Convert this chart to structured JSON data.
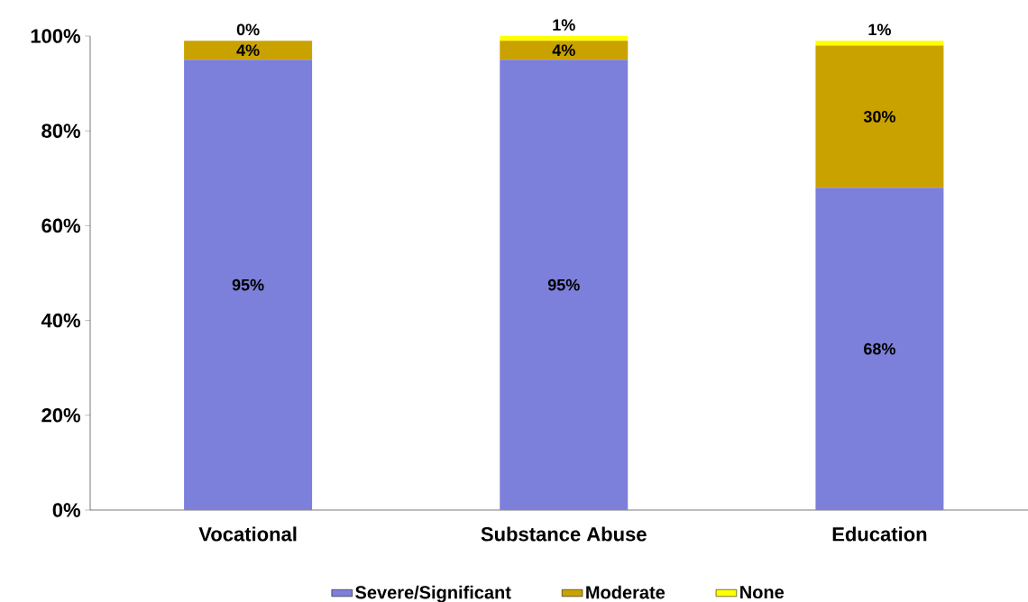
{
  "chart_data": {
    "type": "bar",
    "stacked": true,
    "categories": [
      "Vocational",
      "Substance Abuse",
      "Education"
    ],
    "series": [
      {
        "name": "Severe/Significant",
        "color": "#7c80da",
        "values": [
          95,
          95,
          68
        ],
        "value_labels": [
          "95%",
          "95%",
          "68%"
        ]
      },
      {
        "name": "Moderate",
        "color": "#c9a200",
        "values": [
          4,
          4,
          30
        ],
        "value_labels": [
          "4%",
          "4%",
          "30%"
        ]
      },
      {
        "name": "None",
        "color": "#ffff00",
        "values": [
          0,
          1,
          1
        ],
        "value_labels": [
          "0%",
          "1%",
          "1%"
        ]
      }
    ],
    "ylim": [
      0,
      100
    ],
    "yticks": [
      {
        "value": 0,
        "label": "0%"
      },
      {
        "value": 20,
        "label": "20%"
      },
      {
        "value": 40,
        "label": "40%"
      },
      {
        "value": 60,
        "label": "60%"
      },
      {
        "value": 80,
        "label": "80%"
      },
      {
        "value": 100,
        "label": "100%"
      }
    ],
    "legend": "bottom"
  }
}
